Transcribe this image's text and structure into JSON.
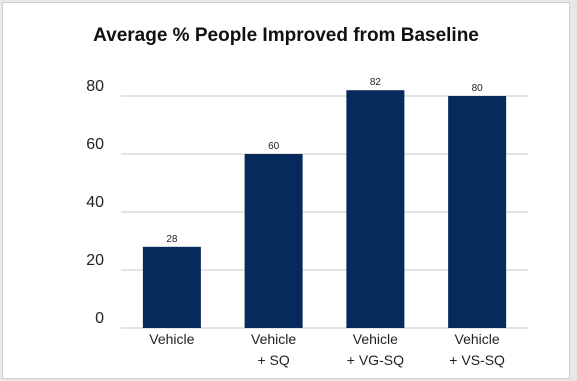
{
  "chart_data": {
    "type": "bar",
    "title": "Average % People Improved from Baseline",
    "xlabel": "",
    "ylabel": "",
    "categories": [
      [
        "Vehicle"
      ],
      [
        "Vehicle",
        "+ SQ"
      ],
      [
        "Vehicle",
        "+ VG-SQ"
      ],
      [
        "Vehicle",
        "+ VS-SQ"
      ]
    ],
    "values": [
      28,
      60,
      82,
      80
    ],
    "data_labels": [
      "28",
      "60",
      "82",
      "80"
    ],
    "ylim": [
      0,
      80
    ],
    "yticks": [
      0,
      20,
      40,
      60,
      80
    ],
    "ytick_labels": [
      "0",
      "20",
      "40",
      "60",
      "80"
    ],
    "grid": true,
    "legend": "none",
    "bar_color": "#062a5c",
    "grid_color": "#c8c8c8"
  }
}
